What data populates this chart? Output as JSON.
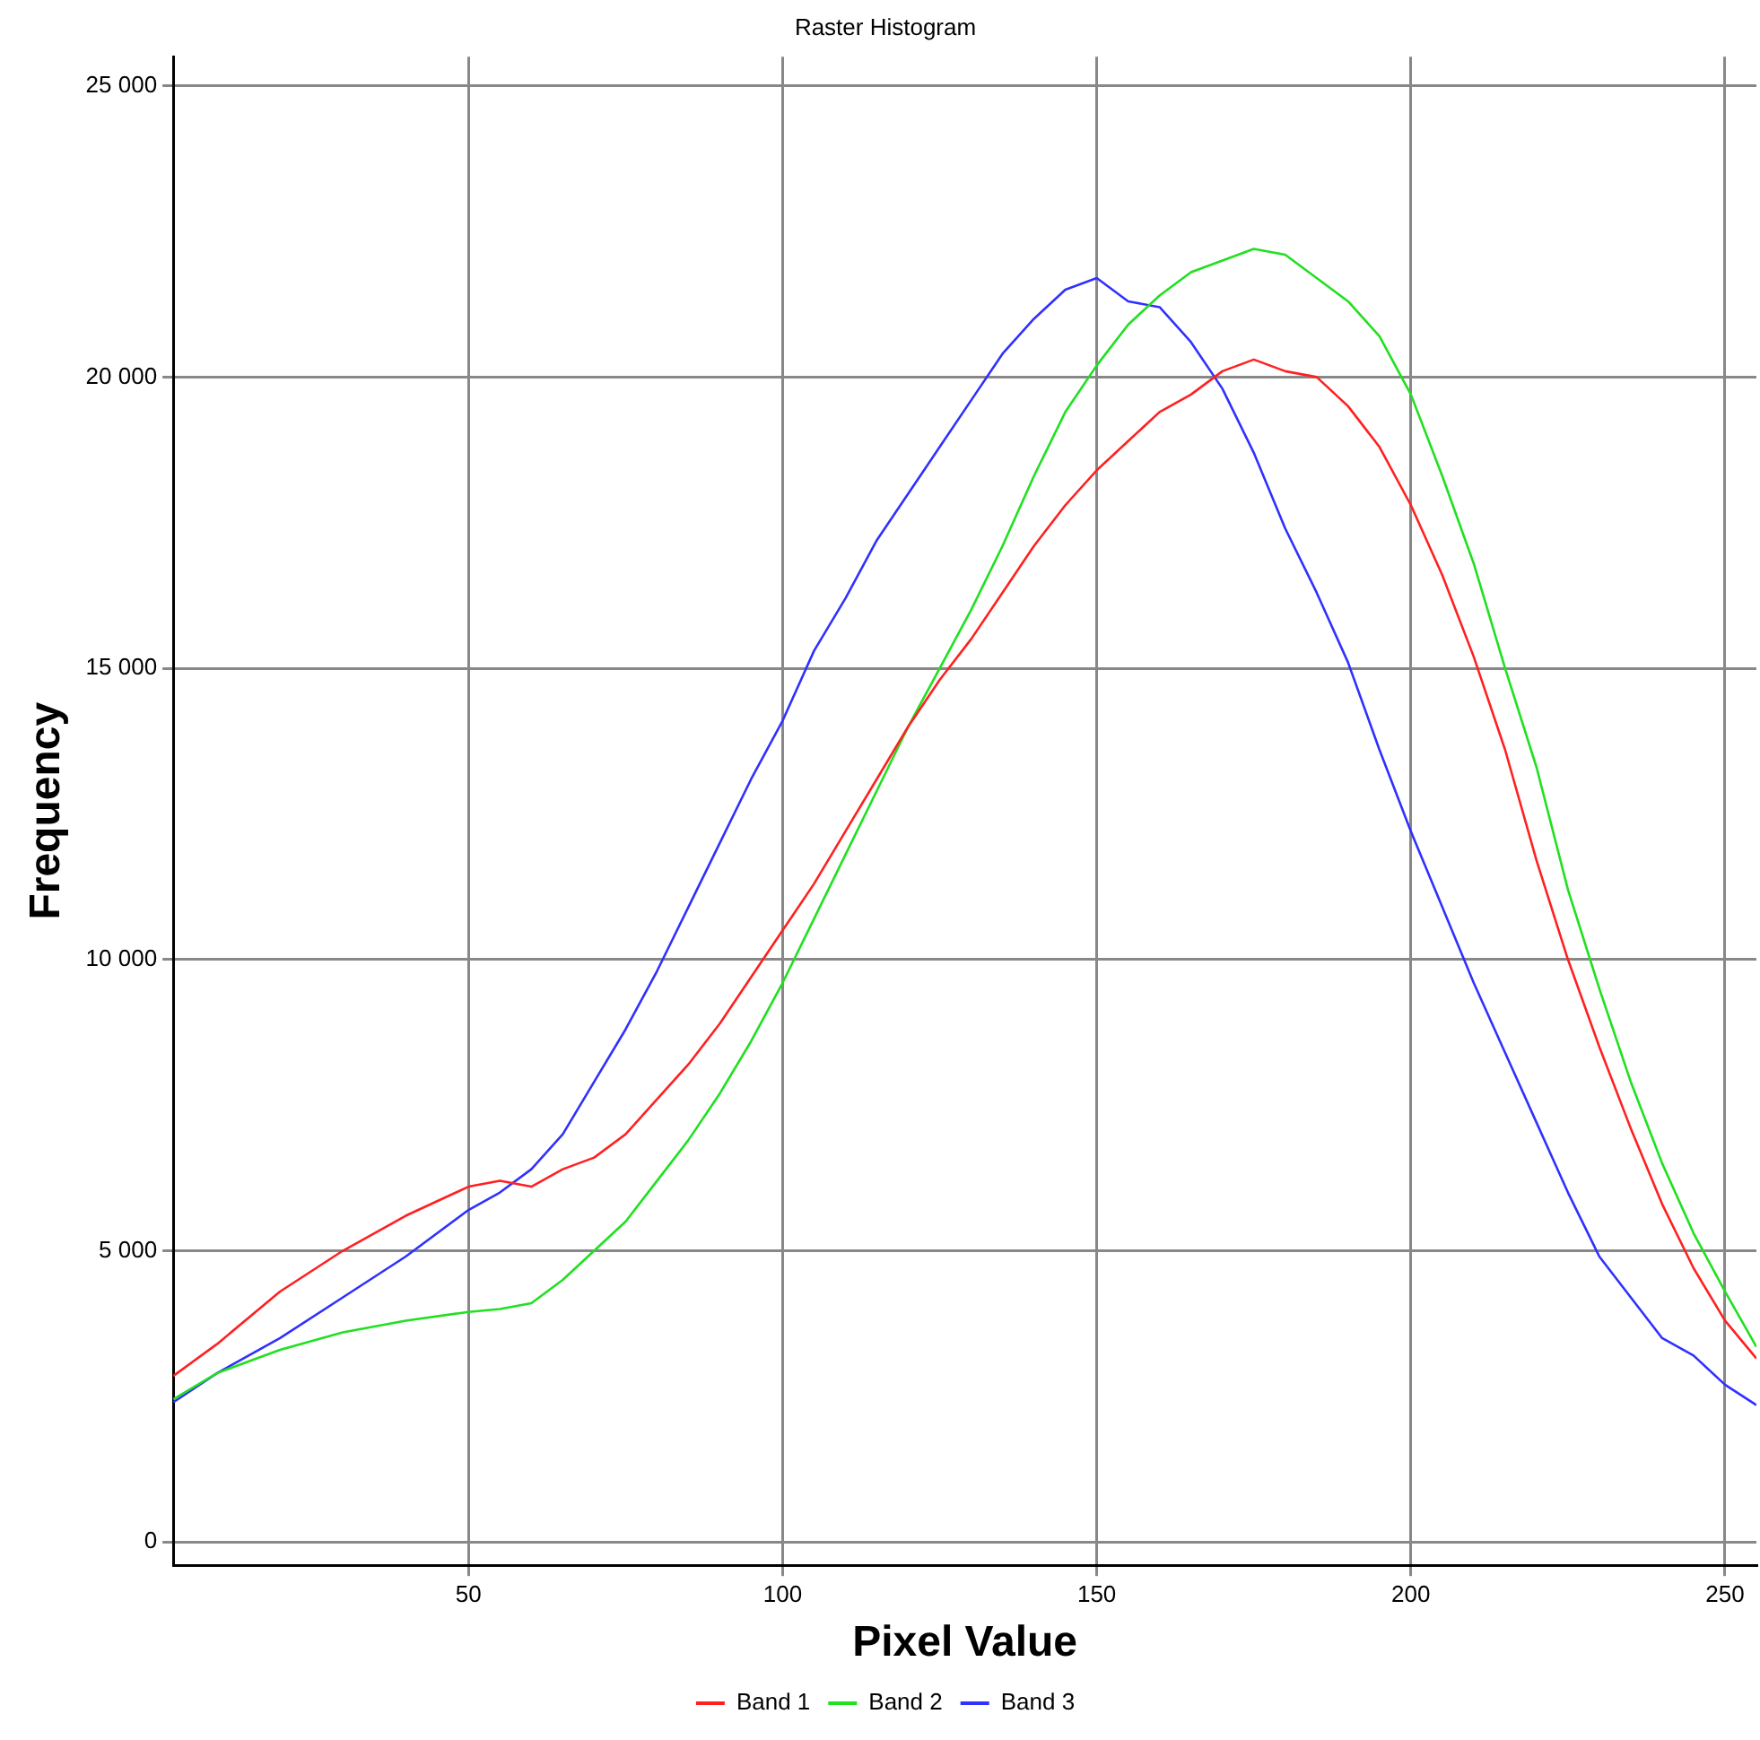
{
  "chart_data": {
    "type": "line",
    "title": "Raster Histogram",
    "xlabel": "Pixel Value",
    "ylabel": "Frequency",
    "x": [
      3,
      10,
      20,
      30,
      40,
      50,
      55,
      60,
      65,
      70,
      75,
      80,
      85,
      90,
      95,
      100,
      105,
      110,
      115,
      120,
      125,
      130,
      135,
      140,
      145,
      150,
      155,
      160,
      165,
      170,
      175,
      180,
      185,
      190,
      195,
      200,
      205,
      210,
      215,
      220,
      225,
      230,
      235,
      240,
      245,
      250,
      255
    ],
    "series": [
      {
        "name": "Band 1",
        "color": "#ff2020",
        "values": [
          2850,
          3400,
          4300,
          5000,
          5600,
          6100,
          6200,
          6100,
          6400,
          6600,
          7000,
          7600,
          8200,
          8900,
          9700,
          10500,
          11300,
          12200,
          13100,
          14000,
          14800,
          15500,
          16300,
          17100,
          17800,
          18400,
          18900,
          19400,
          19700,
          20100,
          20300,
          20100,
          20000,
          19500,
          18800,
          17800,
          16600,
          15200,
          13600,
          11700,
          10000,
          8500,
          7100,
          5800,
          4700,
          3800,
          3150
        ]
      },
      {
        "name": "Band 2",
        "color": "#20e020",
        "values": [
          2450,
          2900,
          3300,
          3600,
          3800,
          3950,
          4000,
          4100,
          4500,
          5000,
          5500,
          6200,
          6900,
          7700,
          8600,
          9600,
          10700,
          11800,
          12900,
          14000,
          15000,
          16000,
          17100,
          18300,
          19400,
          20200,
          20900,
          21400,
          21800,
          22000,
          22200,
          22100,
          21700,
          21300,
          20700,
          19700,
          18300,
          16800,
          15000,
          13300,
          11200,
          9500,
          7900,
          6500,
          5300,
          4300,
          3350
        ]
      },
      {
        "name": "Band 3",
        "color": "#3030ff",
        "values": [
          2400,
          2900,
          3500,
          4200,
          4900,
          5700,
          6000,
          6400,
          7000,
          7900,
          8800,
          9800,
          10900,
          12000,
          13100,
          14100,
          15300,
          16200,
          17200,
          18000,
          18800,
          19600,
          20400,
          21000,
          21500,
          21700,
          21300,
          21200,
          20600,
          19800,
          18700,
          17400,
          16300,
          15100,
          13600,
          12200,
          10900,
          9600,
          8400,
          7200,
          6000,
          4900,
          4200,
          3500,
          3200,
          2700,
          2350
        ]
      }
    ],
    "xlim": [
      3,
      255
    ],
    "xticks": [
      50,
      100,
      150,
      200,
      250
    ],
    "ylim": [
      -400,
      25500
    ],
    "yticks": [
      {
        "value": 0,
        "label": "0"
      },
      {
        "value": 5000,
        "label": "5 000"
      },
      {
        "value": 10000,
        "label": "10 000"
      },
      {
        "value": 15000,
        "label": "15 000"
      },
      {
        "value": 20000,
        "label": "20 000"
      },
      {
        "value": 25000,
        "label": "25 000"
      }
    ],
    "grid": true,
    "legend": "bottom",
    "marker": "none",
    "line_style": "solid"
  }
}
